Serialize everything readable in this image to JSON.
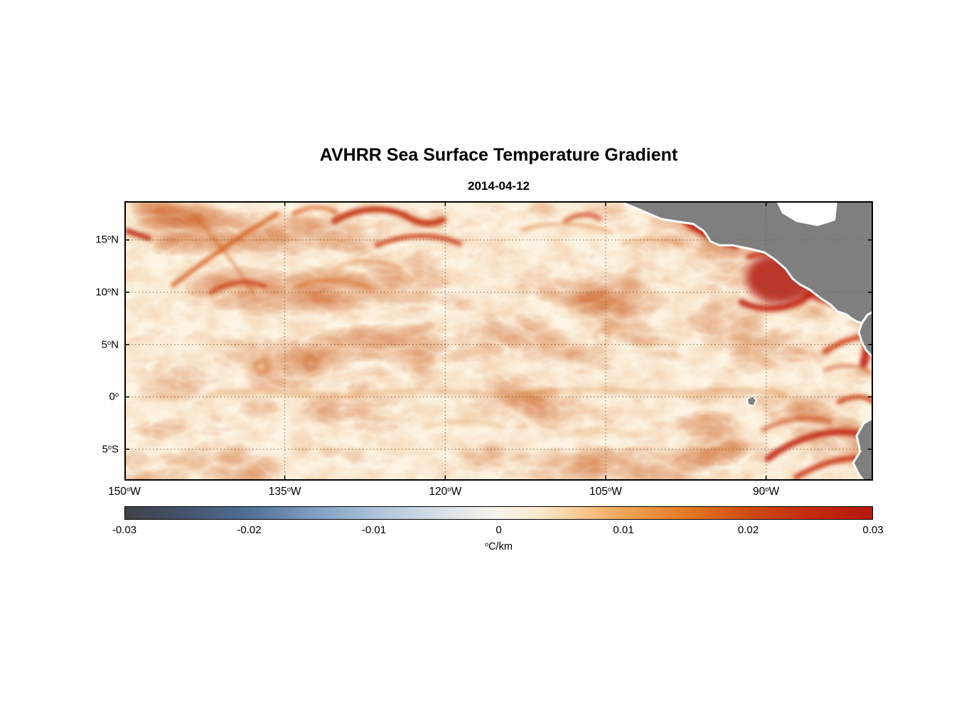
{
  "figure": {
    "title": "AVHRR Sea Surface Temperature Gradient",
    "date": "2014-04-12"
  },
  "axes": {
    "deg_symbol": "o",
    "lon_range_deg_west": [
      150,
      80
    ],
    "lat_range_deg_north": [
      18.7,
      -8
    ],
    "x_ticks": [
      {
        "value": "150",
        "hemi": "W",
        "lon": 150
      },
      {
        "value": "135",
        "hemi": "W",
        "lon": 135
      },
      {
        "value": "120",
        "hemi": "W",
        "lon": 120
      },
      {
        "value": "105",
        "hemi": "W",
        "lon": 105
      },
      {
        "value": "90",
        "hemi": "W",
        "lon": 90
      }
    ],
    "y_ticks": [
      {
        "value": "15",
        "hemi": "N",
        "lat": 15
      },
      {
        "value": "10",
        "hemi": "N",
        "lat": 10
      },
      {
        "value": "5",
        "hemi": "N",
        "lat": 5
      },
      {
        "value": "0",
        "hemi": "",
        "lat": 0
      },
      {
        "value": "5",
        "hemi": "S",
        "lat": -5
      }
    ]
  },
  "colorbar": {
    "unit_deg": "o",
    "unit_text": "C/km",
    "range": [
      -0.03,
      0.03
    ],
    "ticks": [
      "-0.03",
      "-0.02",
      "-0.01",
      "0",
      "0.01",
      "0.02",
      "0.03"
    ],
    "gradient": [
      {
        "stop": 0.0,
        "color": "#3e4247"
      },
      {
        "stop": 0.083,
        "color": "#45536e"
      },
      {
        "stop": 0.167,
        "color": "#4f7097"
      },
      {
        "stop": 0.25,
        "color": "#7e9dc1"
      },
      {
        "stop": 0.333,
        "color": "#abc2d9"
      },
      {
        "stop": 0.417,
        "color": "#d5dee6"
      },
      {
        "stop": 0.5,
        "color": "#f9f4ea"
      },
      {
        "stop": 0.556,
        "color": "#fbe9cd"
      },
      {
        "stop": 0.667,
        "color": "#f1a557"
      },
      {
        "stop": 0.75,
        "color": "#e37a26"
      },
      {
        "stop": 0.833,
        "color": "#cf4b12"
      },
      {
        "stop": 0.917,
        "color": "#c22b0e"
      },
      {
        "stop": 1.0,
        "color": "#b9170e"
      }
    ]
  },
  "chart_data": {
    "type": "heatmap",
    "title": "AVHRR Sea Surface Temperature Gradient",
    "subtitle": "2014-04-12",
    "variable": "sea surface temperature gradient magnitude",
    "units": "°C/km",
    "x_tick_labels": [
      "150°W",
      "135°W",
      "120°W",
      "105°W",
      "90°W"
    ],
    "y_tick_labels": [
      "15°N",
      "10°N",
      "5°N",
      "0°",
      "5°S"
    ],
    "xlim_lon": [
      -150,
      -80
    ],
    "ylim_lat": [
      -8,
      18.7
    ],
    "colorbar_ticks": [
      -0.03,
      -0.02,
      -0.01,
      0,
      0.01,
      0.02,
      0.03
    ],
    "colorbar_range": [
      -0.03,
      0.03
    ],
    "colormap": "diverging: dark slate-blue -> steel blue -> white/cream -> orange -> red",
    "grid": "dotted graticule every 15 deg lon / 5 deg lat",
    "land_color": "#7f7f7f",
    "ocean_background": "#fdf4e3",
    "value_range_observed": [
      0,
      0.03
    ],
    "annotations": [
      "Strongest gradients (~0.02-0.03 C/km, dark red) hug the Central American Pacific coast near the Gulfs of Tehuantepec and Papagayo (95-88W, 8-15N)",
      "Intense gradient bands along the Colombia/Ecuador coast (80W, 0-5N) and Peru coast (80-85W, 3-8S)",
      "Wavy equatorial front of moderate gradients (~0.01 C/km) near 0-2N spanning most of the basin",
      "Red filament arcs near 125-130W, 14-17N and a diagonal filament near 138-142W, 10-15N",
      "Small eddy-like rings near 137W 3N and 132W 3N",
      "Open-ocean interior mostly weak positive gradients (0-0.01 C/km, cream/pale orange); no negative values visible",
      "Land masked gray with white coastline; Caribbean region masked white; small gray island (Galapagos) near 90W, 0.5S"
    ]
  }
}
